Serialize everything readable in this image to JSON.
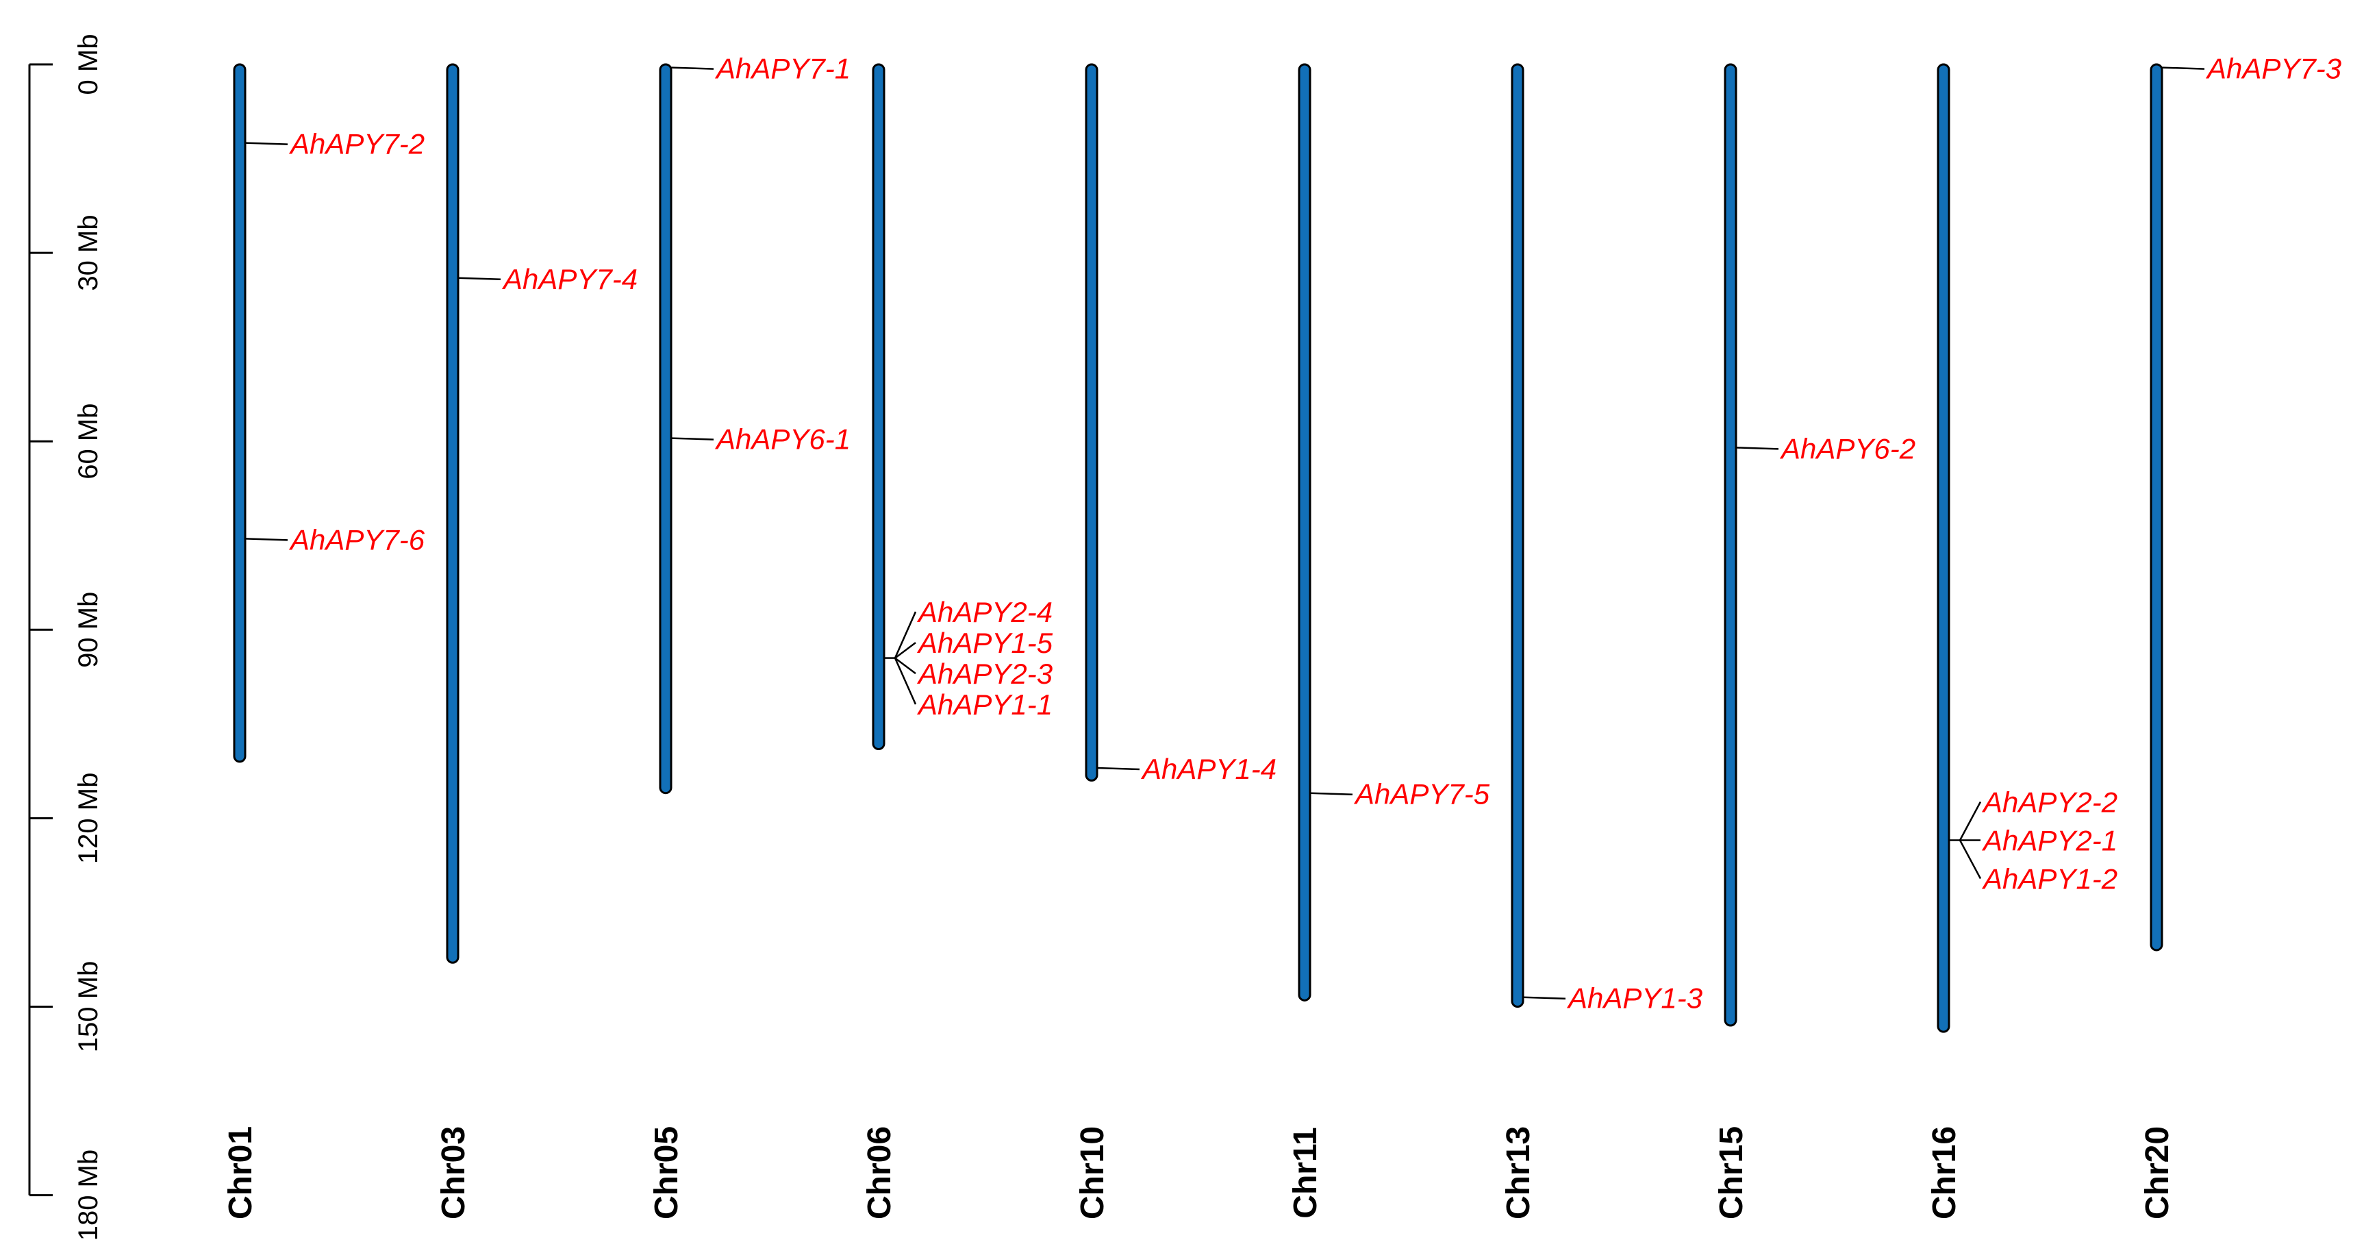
{
  "scale": {
    "unit": "Mb",
    "ticks": [
      {
        "value": 0,
        "label": "0 Mb"
      },
      {
        "value": 30,
        "label": "30 Mb"
      },
      {
        "value": 60,
        "label": "60 Mb"
      },
      {
        "value": 90,
        "label": "90 Mb"
      },
      {
        "value": 120,
        "label": "120 Mb"
      },
      {
        "value": 150,
        "label": "150 Mb"
      },
      {
        "value": 180,
        "label": "180 Mb"
      }
    ]
  },
  "colors": {
    "chromosome": "#1270b8",
    "gene_label": "#ff0000",
    "line": "#000000"
  },
  "chromosomes": [
    {
      "name": "Chr01",
      "length": 111,
      "genes": [
        {
          "name": "AhAPY7-2",
          "position": 12.5
        },
        {
          "name": "AhAPY7-6",
          "position": 75.5
        }
      ]
    },
    {
      "name": "Chr03",
      "length": 143,
      "genes": [
        {
          "name": "AhAPY7-4",
          "position": 34
        }
      ]
    },
    {
      "name": "Chr05",
      "length": 116,
      "genes": [
        {
          "name": "AhAPY7-1",
          "position": 0.5
        },
        {
          "name": "AhAPY6-1",
          "position": 59.5
        }
      ]
    },
    {
      "name": "Chr06",
      "length": 109,
      "genes": [
        {
          "name": "AhAPY2-4",
          "position": 94.5
        },
        {
          "name": "AhAPY1-5",
          "position": 94.5
        },
        {
          "name": "AhAPY2-3",
          "position": 94.5
        },
        {
          "name": "AhAPY1-1",
          "position": 94.5
        }
      ]
    },
    {
      "name": "Chr10",
      "length": 114,
      "genes": [
        {
          "name": "AhAPY1-4",
          "position": 112
        }
      ]
    },
    {
      "name": "Chr11",
      "length": 149,
      "genes": [
        {
          "name": "AhAPY7-5",
          "position": 116
        }
      ]
    },
    {
      "name": "Chr13",
      "length": 150,
      "genes": [
        {
          "name": "AhAPY1-3",
          "position": 148.5
        }
      ]
    },
    {
      "name": "Chr15",
      "length": 153,
      "genes": [
        {
          "name": "AhAPY6-2",
          "position": 61
        }
      ]
    },
    {
      "name": "Chr16",
      "length": 154,
      "genes": [
        {
          "name": "AhAPY2-2",
          "position": 123.5
        },
        {
          "name": "AhAPY2-1",
          "position": 123.5
        },
        {
          "name": "AhAPY1-2",
          "position": 123.5
        }
      ]
    },
    {
      "name": "Chr20",
      "length": 141,
      "genes": [
        {
          "name": "AhAPY7-3",
          "position": 0.5
        }
      ]
    }
  ]
}
